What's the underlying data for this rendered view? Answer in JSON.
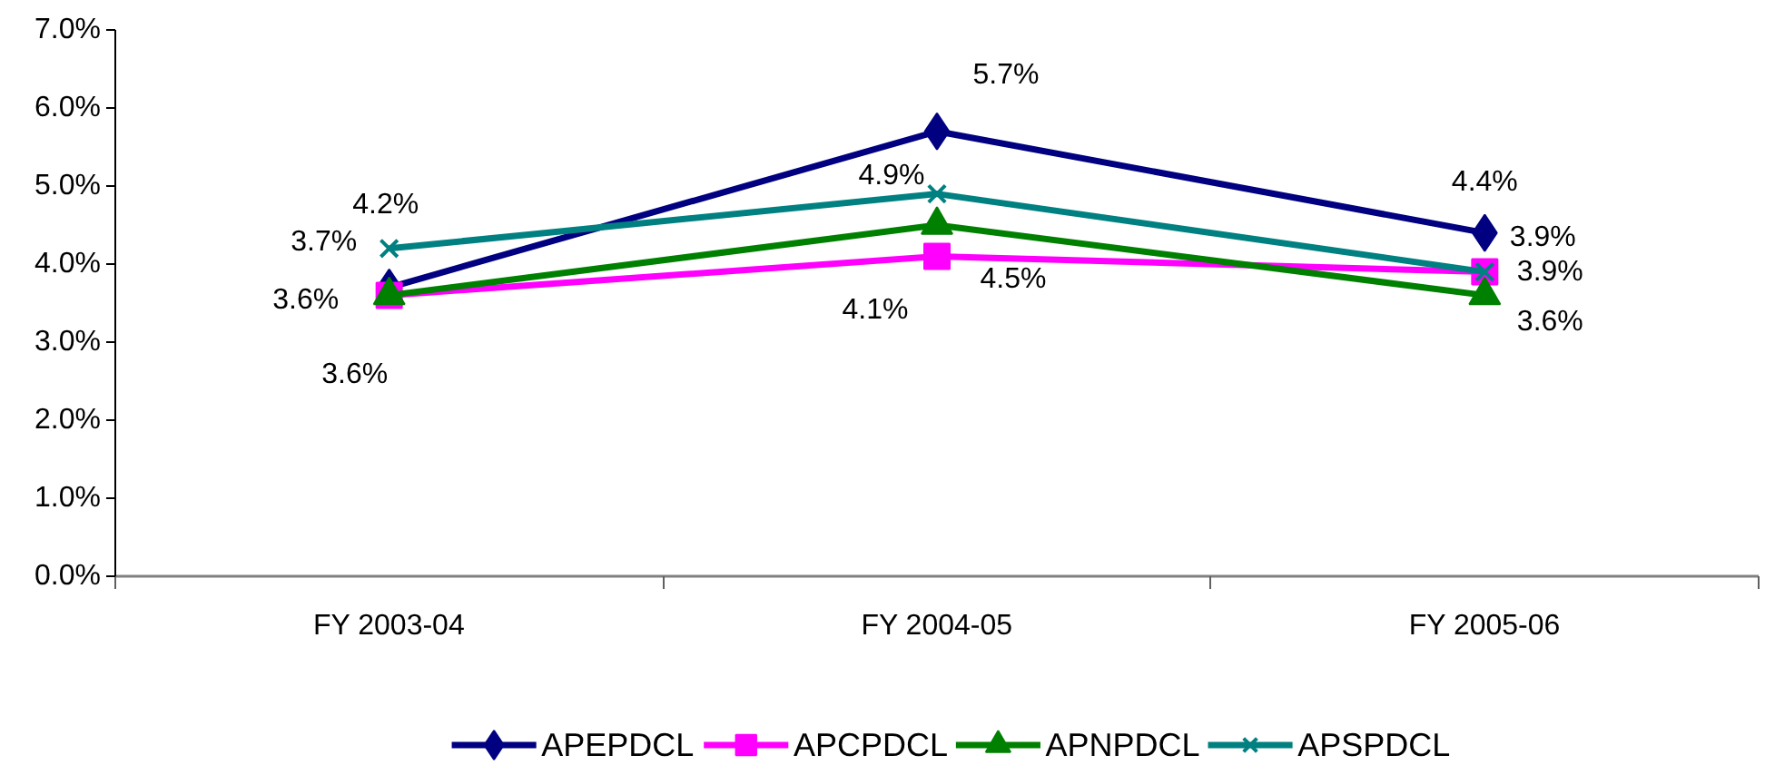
{
  "chart_data": {
    "type": "line",
    "categories": [
      "FY 2003-04",
      "FY 2004-05",
      "FY 2005-06"
    ],
    "ylim": [
      0,
      7
    ],
    "yticks": [
      {
        "value": 0,
        "label": "0.0%"
      },
      {
        "value": 1,
        "label": "1.0%"
      },
      {
        "value": 2,
        "label": "2.0%"
      },
      {
        "value": 3,
        "label": "3.0%"
      },
      {
        "value": 4,
        "label": "4.0%"
      },
      {
        "value": 5,
        "label": "5.0%"
      },
      {
        "value": 6,
        "label": "6.0%"
      },
      {
        "value": 7,
        "label": "7.0%"
      }
    ],
    "grid": false,
    "legend": "bottom",
    "line_style": "solid",
    "series": [
      {
        "name": "APEPDCL",
        "color": "#000080",
        "marker": "diamond",
        "values": [
          3.7,
          5.7,
          4.4
        ],
        "value_labels": [
          "3.7%",
          "5.7%",
          "4.4%"
        ]
      },
      {
        "name": "APCPDCL",
        "color": "#ff00ff",
        "marker": "square",
        "values": [
          3.6,
          4.1,
          3.9
        ],
        "value_labels": [
          "3.6%",
          "4.1%",
          "3.9%"
        ]
      },
      {
        "name": "APNPDCL",
        "color": "#008000",
        "marker": "triangle",
        "values": [
          3.6,
          4.5,
          3.6
        ],
        "value_labels": [
          "3.6%",
          "4.5%",
          "3.6%"
        ]
      },
      {
        "name": "APSPDCL",
        "color": "#008080",
        "marker": "cross",
        "values": [
          4.2,
          4.9,
          3.9
        ],
        "value_labels": [
          "4.2%",
          "4.9%",
          "3.9%"
        ]
      }
    ]
  }
}
